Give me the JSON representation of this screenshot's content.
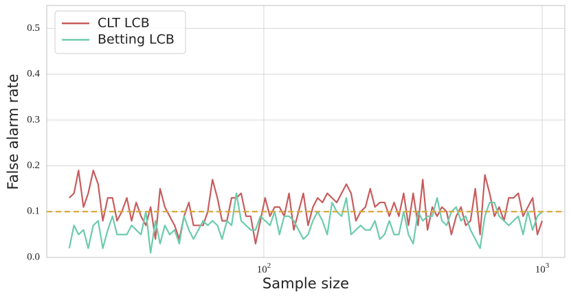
{
  "chart_data": {
    "type": "line",
    "xlabel": "Sample size",
    "ylabel": "False alarm rate",
    "x": [
      20.0,
      20.8,
      21.6,
      22.5,
      23.4,
      24.4,
      25.4,
      26.4,
      27.5,
      28.6,
      29.7,
      30.9,
      32.2,
      33.5,
      34.8,
      36.2,
      37.7,
      39.2,
      40.8,
      42.4,
      44.1,
      45.9,
      47.8,
      49.7,
      51.7,
      53.8,
      55.9,
      58.2,
      60.5,
      62.9,
      65.4,
      68.1,
      70.8,
      73.7,
      76.6,
      79.7,
      82.9,
      86.3,
      89.7,
      93.4,
      97.2,
      101.1,
      105.2,
      109.4,
      113.8,
      118.4,
      123.2,
      128.1,
      133.3,
      138.7,
      144.2,
      150.1,
      156.1,
      162.4,
      169.0,
      175.8,
      182.8,
      190.2,
      197.9,
      205.9,
      214.2,
      222.8,
      231.8,
      241.1,
      250.8,
      261.0,
      271.5,
      282.4,
      293.8,
      305.6,
      318.0,
      330.8,
      344.1,
      358.0,
      372.4,
      387.4,
      403.0,
      419.3,
      436.2,
      453.7,
      472.0,
      491.1,
      510.9,
      531.4,
      552.8,
      575.1,
      598.3,
      622.4,
      647.5,
      673.6,
      700.8,
      729.0,
      758.4,
      789.0,
      820.8,
      853.9,
      888.3,
      924.1,
      961.3,
      1000
    ],
    "series": [
      {
        "name": "CLT LCB",
        "color": "#c75b5c",
        "values": [
          0.13,
          0.14,
          0.19,
          0.11,
          0.14,
          0.19,
          0.16,
          0.08,
          0.13,
          0.13,
          0.08,
          0.1,
          0.13,
          0.08,
          0.12,
          0.09,
          0.07,
          0.11,
          0.04,
          0.15,
          0.11,
          0.09,
          0.07,
          0.04,
          0.09,
          0.12,
          0.07,
          0.07,
          0.07,
          0.1,
          0.17,
          0.13,
          0.08,
          0.08,
          0.13,
          0.13,
          0.14,
          0.09,
          0.09,
          0.03,
          0.08,
          0.13,
          0.09,
          0.11,
          0.11,
          0.09,
          0.14,
          0.06,
          0.1,
          0.14,
          0.07,
          0.11,
          0.13,
          0.12,
          0.14,
          0.13,
          0.12,
          0.14,
          0.16,
          0.14,
          0.08,
          0.1,
          0.11,
          0.15,
          0.11,
          0.12,
          0.12,
          0.09,
          0.12,
          0.09,
          0.14,
          0.07,
          0.14,
          0.07,
          0.17,
          0.06,
          0.11,
          0.09,
          0.11,
          0.1,
          0.05,
          0.09,
          0.11,
          0.07,
          0.08,
          0.15,
          0.05,
          0.18,
          0.14,
          0.09,
          0.11,
          0.08,
          0.13,
          0.13,
          0.14,
          0.09,
          0.11,
          0.13,
          0.05,
          0.08
        ]
      },
      {
        "name": "Betting LCB",
        "color": "#6bcbac",
        "values": [
          0.02,
          0.07,
          0.05,
          0.06,
          0.02,
          0.07,
          0.08,
          0.02,
          0.06,
          0.09,
          0.05,
          0.05,
          0.05,
          0.07,
          0.06,
          0.05,
          0.1,
          0.01,
          0.08,
          0.03,
          0.07,
          0.05,
          0.06,
          0.03,
          0.09,
          0.06,
          0.04,
          0.06,
          0.08,
          0.07,
          0.08,
          0.07,
          0.04,
          0.08,
          0.07,
          0.14,
          0.08,
          0.07,
          0.06,
          0.06,
          0.09,
          0.08,
          0.07,
          0.1,
          0.05,
          0.09,
          0.09,
          0.08,
          0.06,
          0.04,
          0.05,
          0.08,
          0.1,
          0.08,
          0.05,
          0.12,
          0.1,
          0.09,
          0.13,
          0.05,
          0.06,
          0.07,
          0.06,
          0.06,
          0.08,
          0.04,
          0.05,
          0.08,
          0.05,
          0.05,
          0.1,
          0.05,
          0.03,
          0.1,
          0.08,
          0.09,
          0.09,
          0.13,
          0.08,
          0.07,
          0.1,
          0.11,
          0.08,
          0.09,
          0.06,
          0.04,
          0.02,
          0.09,
          0.12,
          0.12,
          0.09,
          0.08,
          0.07,
          0.08,
          0.09,
          0.05,
          0.1,
          0.06,
          0.09,
          0.1
        ]
      }
    ],
    "hline": {
      "value": 0.1,
      "color": "#d9a93a"
    },
    "xscale": "log",
    "xlim": [
      16.6,
      1206
    ],
    "xticks": [
      {
        "value": 100,
        "label": "10",
        "exp": "2"
      },
      {
        "value": 1000,
        "label": "10",
        "exp": "3"
      }
    ],
    "ylim": [
      0,
      0.55
    ],
    "yticks": [
      {
        "value": 0,
        "label": "0.0"
      },
      0.1,
      0.2,
      0.3,
      0.4,
      0.5
    ],
    "grid": true,
    "legend": "upper left"
  }
}
